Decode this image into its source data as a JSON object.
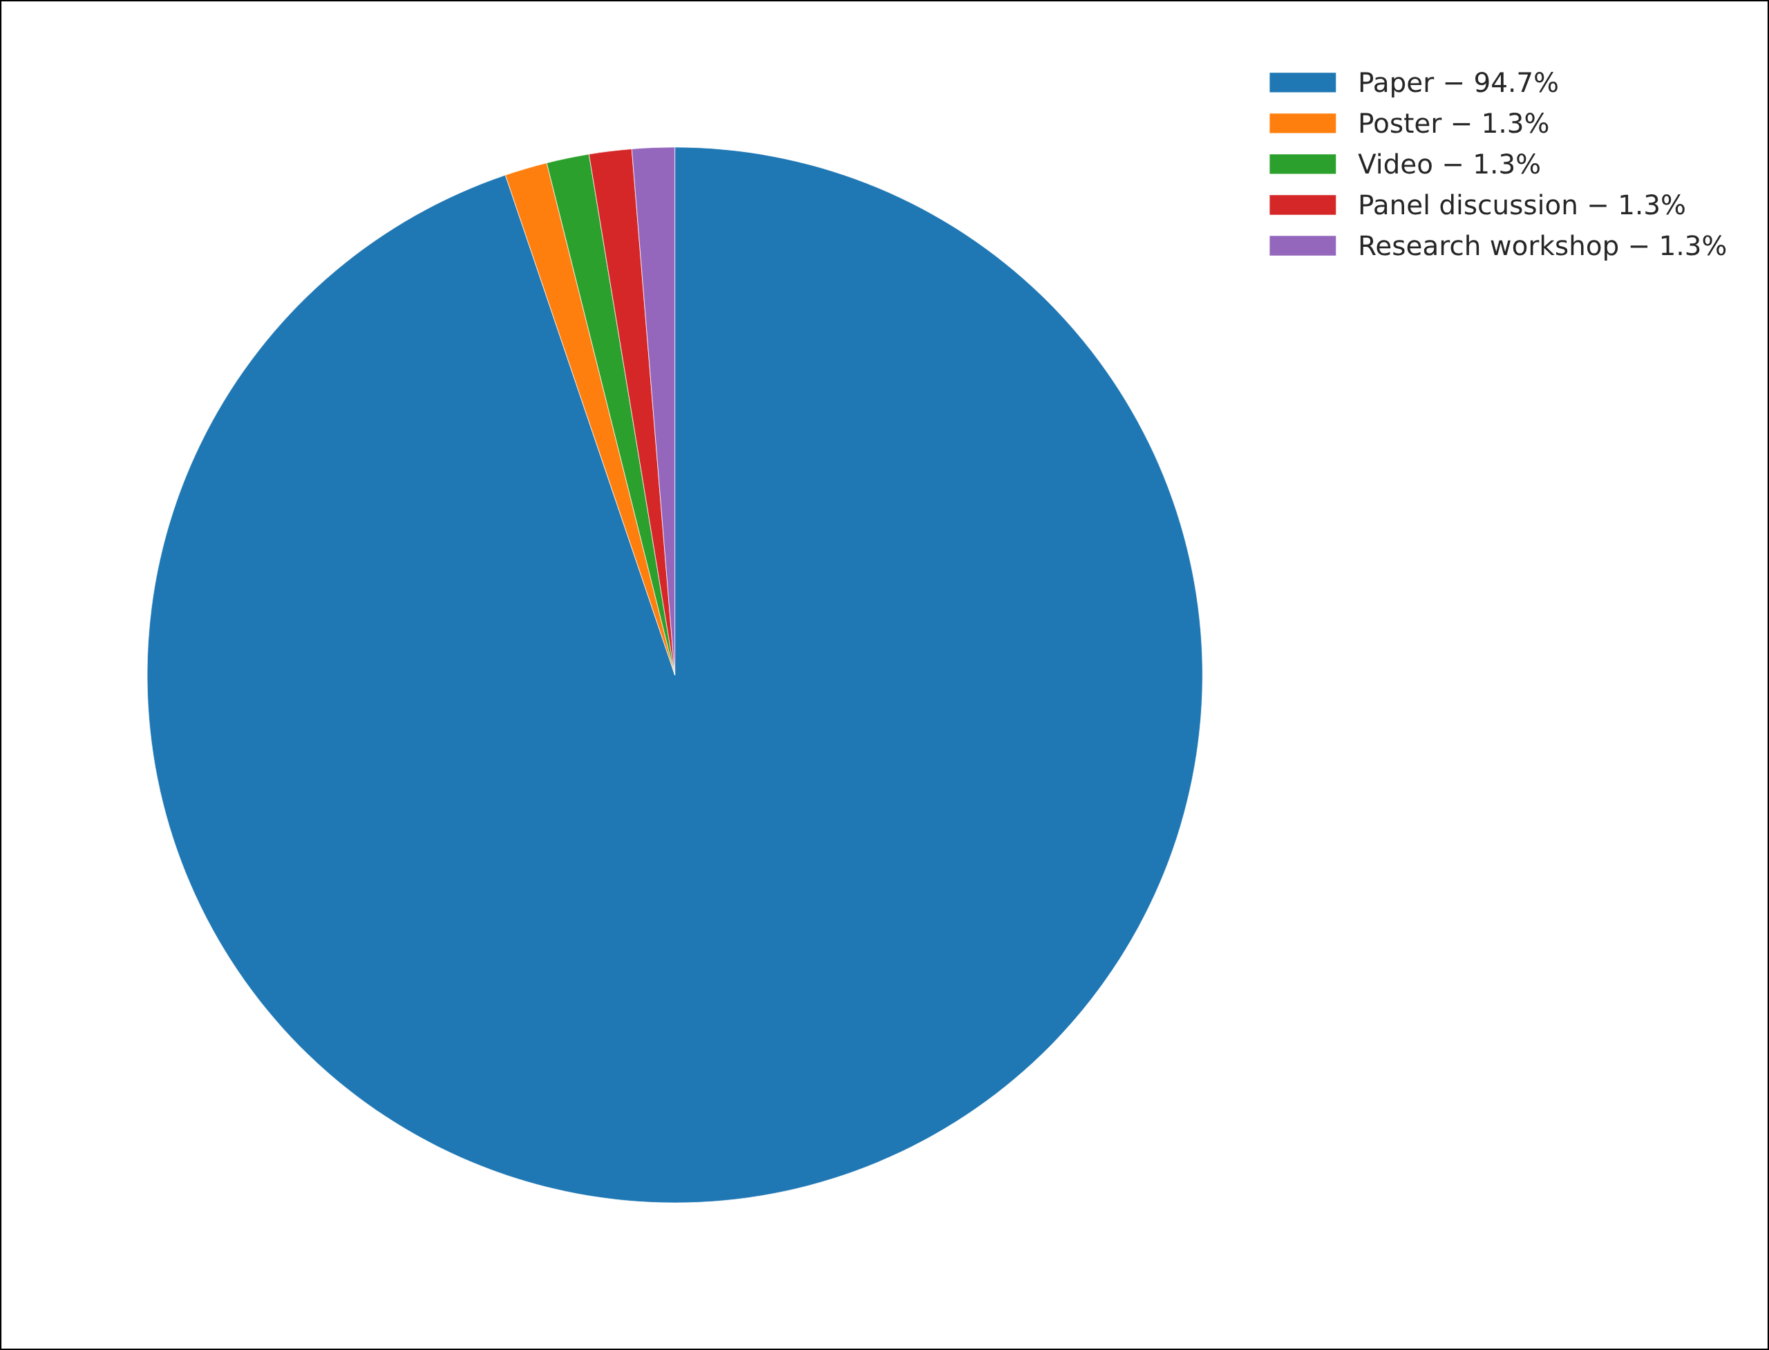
{
  "chart_data": {
    "type": "pie",
    "categories": [
      "Paper − 94.7%",
      "Poster − 1.3%",
      "Video − 1.3%",
      "Panel discussion − 1.3%",
      "Research workshop − 1.3%"
    ],
    "values": [
      94.7,
      1.3,
      1.3,
      1.3,
      1.3
    ],
    "colors": [
      "#1f77b4",
      "#ff7f0e",
      "#2ca02c",
      "#d62728",
      "#9467bd"
    ],
    "legend": "top right"
  }
}
